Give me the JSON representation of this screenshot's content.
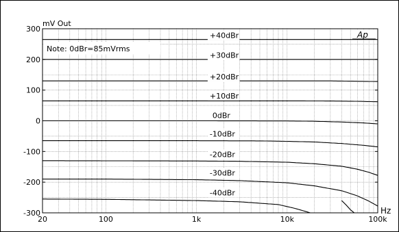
{
  "chart_data": {
    "type": "line",
    "ylabel": "mV  Out",
    "xunit": "Hz",
    "xscale": "log",
    "xlim": [
      20,
      100000
    ],
    "ylim": [
      -300,
      300
    ],
    "xticks": [
      {
        "value": 20,
        "label": "20"
      },
      {
        "value": 100,
        "label": "100"
      },
      {
        "value": 1000,
        "label": "1k"
      },
      {
        "value": 10000,
        "label": "10k"
      },
      {
        "value": 100000,
        "label": "100k"
      }
    ],
    "yticks": [
      -300,
      -200,
      -100,
      0,
      100,
      200,
      300
    ],
    "grid": true,
    "note": "Note:  0dBr=85mVrms",
    "logo": "Ap",
    "series": [
      {
        "name": "+40dBr",
        "offset": 265,
        "x": [
          20,
          100,
          1000,
          10000,
          100000
        ],
        "y": [
          0,
          0,
          0,
          0,
          0
        ]
      },
      {
        "name": "+30dBr",
        "offset": 200,
        "x": [
          20,
          100,
          1000,
          10000,
          100000
        ],
        "y": [
          0,
          0,
          0,
          0,
          0
        ]
      },
      {
        "name": "+20dBr",
        "offset": 130,
        "x": [
          20,
          100,
          1000,
          10000,
          30000,
          100000
        ],
        "y": [
          0,
          0,
          0,
          0,
          0,
          -2
        ]
      },
      {
        "name": "+10dBr",
        "offset": 65,
        "x": [
          20,
          1000,
          10000,
          30000,
          60000,
          100000
        ],
        "y": [
          0,
          0,
          0,
          -0.5,
          -1.5,
          -3
        ]
      },
      {
        "name": "0dBr",
        "offset": 0,
        "x": [
          20,
          1000,
          10000,
          20000,
          40000,
          70000,
          100000
        ],
        "y": [
          0,
          0,
          -0.5,
          -1.5,
          -4,
          -7,
          -10
        ]
      },
      {
        "name": "-10dBr",
        "offset": -65,
        "x": [
          20,
          1000,
          5000,
          10000,
          20000,
          40000,
          70000,
          100000
        ],
        "y": [
          0,
          0,
          -0.5,
          -2,
          -4,
          -9,
          -15,
          -20
        ]
      },
      {
        "name": "-20dBr",
        "offset": -130,
        "x": [
          20,
          1000,
          3000,
          10000,
          20000,
          40000,
          60000,
          80000,
          100000
        ],
        "y": [
          0,
          -1,
          -2,
          -5,
          -10,
          -18,
          -28,
          -38,
          -48
        ]
      },
      {
        "name": "-30dBr",
        "offset": -190,
        "x": [
          20,
          100,
          1000,
          3000,
          10000,
          20000,
          40000,
          60000,
          80000,
          100000
        ],
        "y": [
          0,
          0,
          -2,
          -5,
          -12,
          -22,
          -38,
          -55,
          -72,
          -88
        ]
      },
      {
        "name": "-40dBr",
        "offset": -255,
        "x": [
          20,
          100,
          1000,
          3000,
          8000,
          12000,
          15000,
          18000
        ],
        "y": [
          0,
          -1,
          -5,
          -9,
          -18,
          -30,
          -38,
          -45
        ]
      },
      {
        "name": "",
        "offset": -255,
        "x": [
          40000,
          45000,
          50000,
          55000
        ],
        "y": [
          -5,
          -20,
          -35,
          -45
        ]
      }
    ],
    "curve_labels": [
      {
        "text": "+40dBr",
        "x": 1400,
        "y": 270
      },
      {
        "text": "+30dBr",
        "x": 1400,
        "y": 205
      },
      {
        "text": "+20dBr",
        "x": 1400,
        "y": 135
      },
      {
        "text": "+10dBr",
        "x": 1400,
        "y": 73
      },
      {
        "text": "0dBr",
        "x": 1500,
        "y": 9
      },
      {
        "text": "-10dBr",
        "x": 1400,
        "y": -51
      },
      {
        "text": "-20dBr",
        "x": 1400,
        "y": -118
      },
      {
        "text": "-30dBr",
        "x": 1400,
        "y": -178
      },
      {
        "text": "-40dBr",
        "x": 1400,
        "y": -243
      }
    ]
  }
}
